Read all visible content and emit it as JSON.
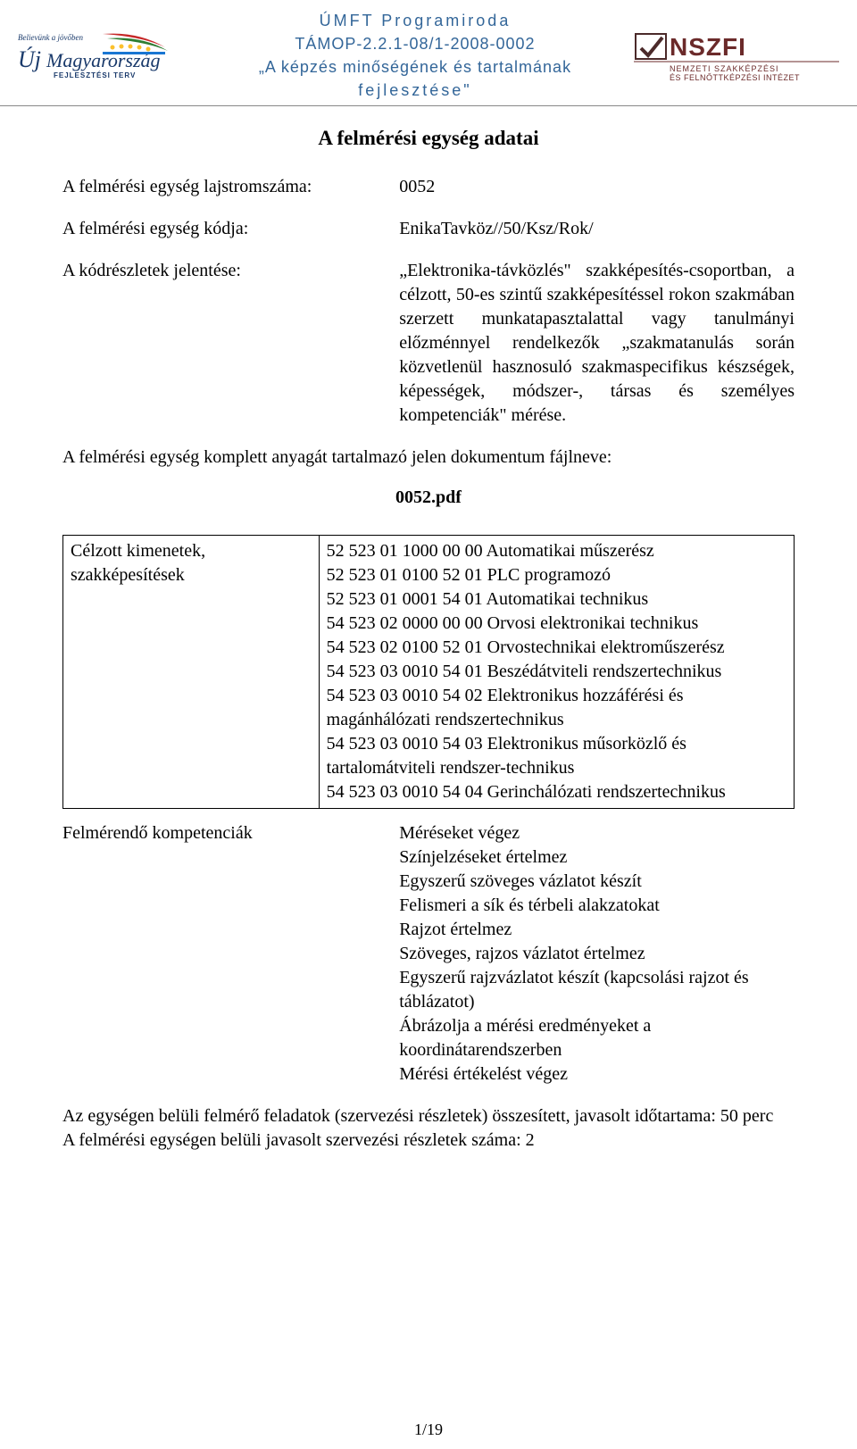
{
  "header": {
    "line1": "ÚMFT Programiroda",
    "line2": "TÁMOP-2.2.1-08/1-2008-0002",
    "line3": "„A képzés minőségének és tartalmának",
    "line4": "fejlesztése\"",
    "accent_color": "#336699",
    "logo_left": {
      "script_text": "Believünk a jövőben",
      "main_text_1": "Új",
      "main_text_2": "Magyarország",
      "sub_text": "FEJLESZTÉSI TERV",
      "color_dark": "#1a3a6b",
      "color_red": "#c62828",
      "color_green": "#2e7d32",
      "color_yellow": "#fbc02d",
      "color_blue": "#1976d2"
    },
    "logo_right": {
      "text_main": "NSZFI",
      "text_sub1": "NEMZETI SZAKKÉPZÉSI",
      "text_sub2": "ÉS FELNŐTTKÉPZÉSI INTÉZET",
      "color_text": "#6b2a2a",
      "color_tick": "#4b2a2a"
    }
  },
  "title": "A felmérési egység adatai",
  "fields": {
    "lajstrom_label": "A felmérési egység lajstromszáma:",
    "lajstrom_value": "0052",
    "kod_label": "A felmérési egység kódja:",
    "kod_value": "EnikaTavköz//50/Ksz/Rok/",
    "jelentes_label": "A kódrészletek jelentése:",
    "jelentes_value": "„Elektronika-távközlés\" szakképesítés-csoportban, a célzott, 50-es szintű szakképesítéssel rokon szakmában szerzett munkatapasztalattal vagy tanulmányi előzménnyel rendelkezők „szakmatanulás során közvetlenül hasznosuló szakmaspecifikus készségek, képességek, módszer-, társas és személyes kompetenciák\" mérése."
  },
  "file_line": "A felmérési egység komplett anyagát tartalmazó jelen dokumentum fájlneve:",
  "file_name": "0052.pdf",
  "outputs_table": {
    "label": "Célzott kimenetek, szakképesítések",
    "items": [
      "52 523 01 1000 00 00 Automatikai műszerész",
      "52 523 01 0100 52 01 PLC programozó",
      "52 523 01 0001 54 01 Automatikai technikus",
      "54 523 02 0000 00 00 Orvosi elektronikai technikus",
      "54 523 02 0100 52 01 Orvostechnikai elektroműszerész",
      "54 523 03 0010 54 01 Beszédátviteli rendszertechnikus",
      "54 523 03 0010 54 02 Elektronikus hozzáférési és magánhálózati rendszertechnikus",
      "54 523 03 0010 54 03 Elektronikus műsorközlő és tartalomátviteli rendszer-technikus",
      "54 523 03 0010 54 04 Gerinchálózati rendszertechnikus"
    ]
  },
  "competencies": {
    "label": "Felmérendő kompetenciák",
    "items": [
      "Méréseket végez",
      "Színjelzéseket értelmez",
      "Egyszerű szöveges vázlatot készít",
      "Felismeri a sík és térbeli alakzatokat",
      "Rajzot értelmez",
      "Szöveges, rajzos vázlatot értelmez",
      "Egyszerű rajzvázlatot készít (kapcsolási rajzot és táblázatot)",
      "Ábrázolja a mérési eredményeket a koordinátarendszerben",
      "Mérési értékelést végez"
    ]
  },
  "bottom": {
    "line1": "Az egységen belüli felmérő feladatok (szervezési részletek) összesített, javasolt időtartama: 50 perc",
    "line2": "A felmérési egységen belüli javasolt szervezési részletek száma: 2"
  },
  "page_num": "1/19",
  "colors": {
    "text": "#000000",
    "background": "#ffffff",
    "border": "#000000",
    "header_rule": "#888888"
  }
}
